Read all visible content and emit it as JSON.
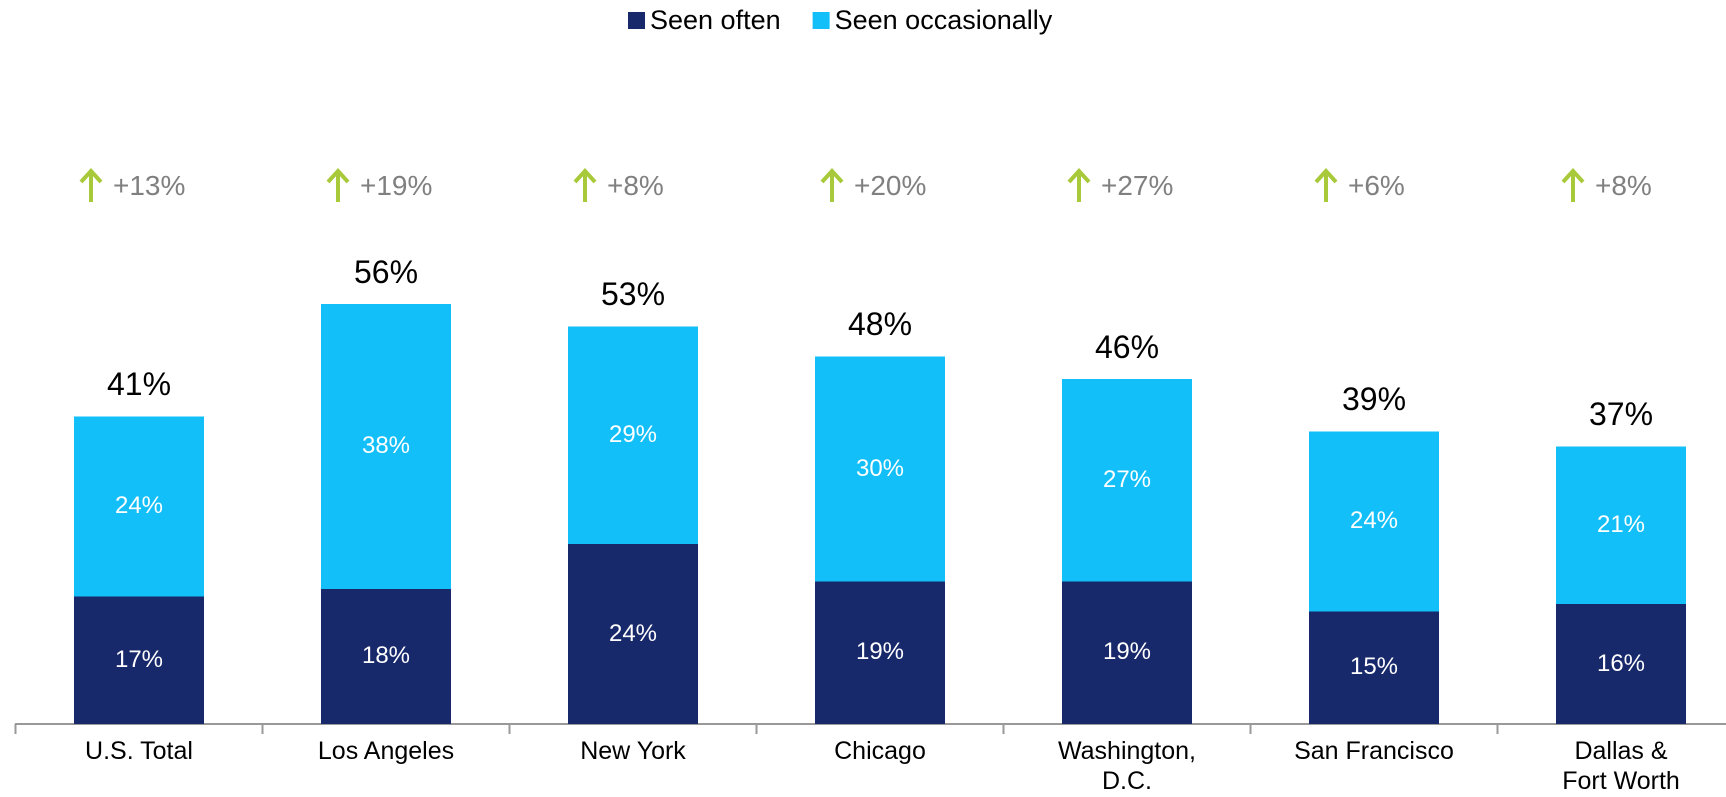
{
  "chart_data": {
    "type": "stacked-bar",
    "categories": [
      "U.S. Total",
      "Los Angeles",
      "New York",
      "Chicago",
      "Washington,\nD.C.",
      "San Francisco",
      "Dallas &\nFort Worth"
    ],
    "series": [
      {
        "name": "Seen often",
        "color": "#17286b",
        "values": [
          17,
          18,
          24,
          19,
          19,
          15,
          16
        ],
        "value_labels": [
          "17%",
          "18%",
          "24%",
          "19%",
          "19%",
          "15%",
          "16%"
        ]
      },
      {
        "name": "Seen occasionally",
        "color": "#12bff9",
        "values": [
          24,
          38,
          29,
          30,
          27,
          24,
          21
        ],
        "value_labels": [
          "24%",
          "38%",
          "29%",
          "30%",
          "27%",
          "24%",
          "21%"
        ]
      }
    ],
    "totals": [
      41,
      56,
      53,
      48,
      46,
      39,
      37
    ],
    "total_labels": [
      "41%",
      "56%",
      "53%",
      "48%",
      "46%",
      "39%",
      "37%"
    ],
    "changes": [
      13,
      19,
      8,
      20,
      27,
      6,
      8
    ],
    "change_labels": [
      "+13%",
      "+19%",
      "+8%",
      "+20%",
      "+27%",
      "+6%",
      "+8%"
    ],
    "change_color": "#a8c93a",
    "legend": "top"
  }
}
